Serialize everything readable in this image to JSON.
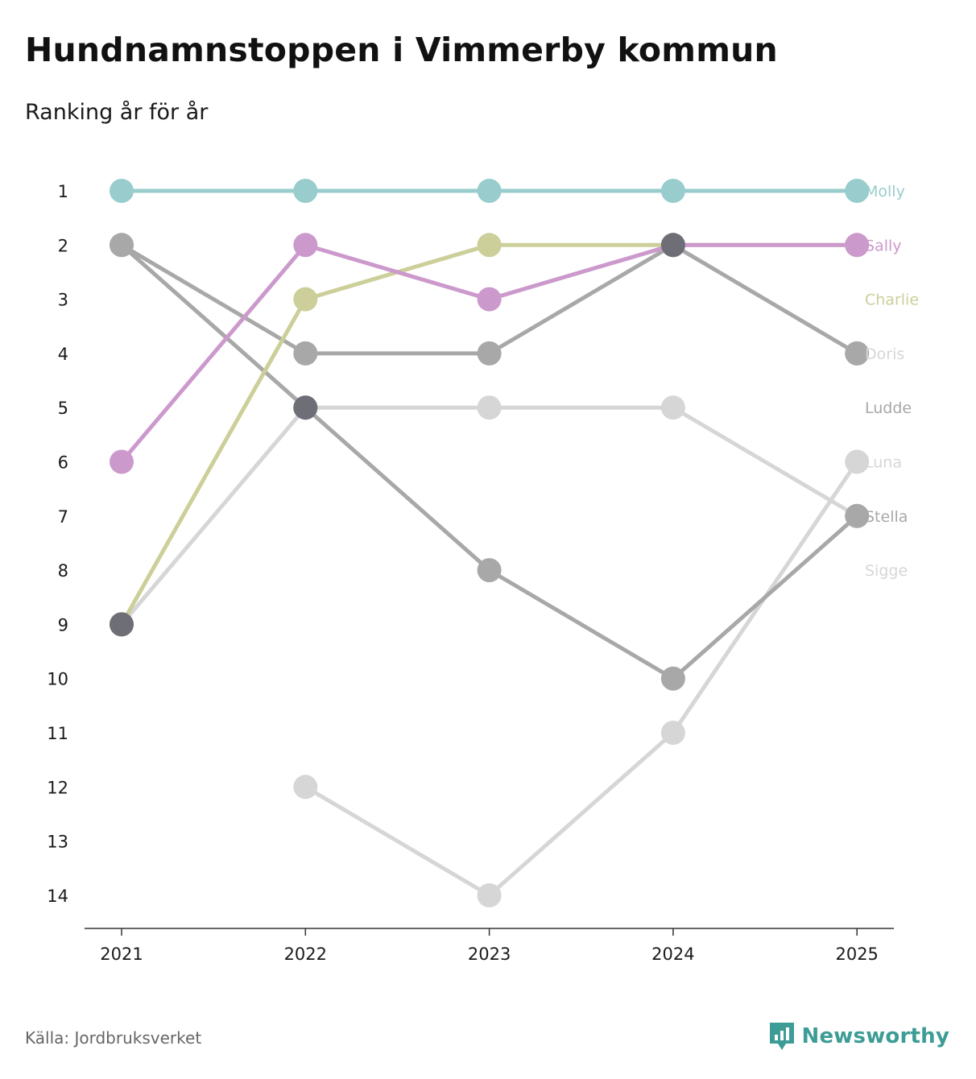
{
  "title": "Hundnamnstoppen i Vimmerby kommun",
  "subtitle": "Ranking år för år",
  "source": "Källa: Jordbruksverket",
  "brand": "Newsworthy",
  "chart_data": {
    "type": "line",
    "title": "Hundnamnstoppen i Vimmerby kommun",
    "subtitle": "Ranking år för år",
    "xlabel": "",
    "ylabel": "",
    "x": [
      2021,
      2022,
      2023,
      2024,
      2025
    ],
    "x_tick_labels": [
      "2021",
      "2022",
      "2023",
      "2024",
      "2025"
    ],
    "y_ticks": [
      1,
      2,
      3,
      4,
      5,
      6,
      7,
      8,
      9,
      10,
      11,
      12,
      13,
      14
    ],
    "ylim": [
      1,
      14
    ],
    "y_inverted": true,
    "grid": false,
    "legend": "right-side direct labels",
    "series": [
      {
        "name": "Sigge",
        "color": "#d6d6d6",
        "values": [
          null,
          12,
          14,
          11,
          6
        ]
      },
      {
        "name": "Luna",
        "color": "#d6d6d6",
        "values": [
          9,
          5,
          5,
          5,
          7
        ]
      },
      {
        "name": "Doris",
        "color": "#d6d6d6",
        "values": [
          null,
          null,
          null,
          null,
          4
        ]
      },
      {
        "name": "Stella",
        "color": "#a8a8a8",
        "values": [
          2,
          5,
          8,
          10,
          7
        ]
      },
      {
        "name": "Ludde",
        "color": "#a8a8a8",
        "values": [
          2,
          4,
          4,
          2,
          4
        ]
      },
      {
        "name": "Charlie",
        "color": "#cccf99",
        "values": [
          9,
          3,
          2,
          2,
          2
        ]
      },
      {
        "name": "Sally",
        "color": "#cc99cc",
        "values": [
          6,
          2,
          3,
          2,
          2
        ]
      },
      {
        "name": "Molly",
        "color": "#99cccc",
        "values": [
          1,
          1,
          1,
          1,
          1
        ]
      }
    ],
    "highlight_points": [
      {
        "x": 2021,
        "y": 9,
        "color": "#6e6e76"
      },
      {
        "x": 2022,
        "y": 5,
        "color": "#6e6e76"
      },
      {
        "x": 2024,
        "y": 2,
        "color": "#6e6e76"
      }
    ],
    "labels": [
      {
        "name": "Molly",
        "rank": 1,
        "color": "#99cccc"
      },
      {
        "name": "Sally",
        "rank": 2,
        "color": "#cc99cc"
      },
      {
        "name": "Charlie",
        "rank": 3,
        "color": "#cccf99"
      },
      {
        "name": "Doris",
        "rank": 4,
        "color": "#d6d6d6"
      },
      {
        "name": "Ludde",
        "rank": 5,
        "color": "#a8a8a8"
      },
      {
        "name": "Luna",
        "rank": 6,
        "color": "#d6d6d6"
      },
      {
        "name": "Stella",
        "rank": 7,
        "color": "#a8a8a8"
      },
      {
        "name": "Sigge",
        "rank": 8,
        "color": "#d6d6d6"
      }
    ]
  }
}
